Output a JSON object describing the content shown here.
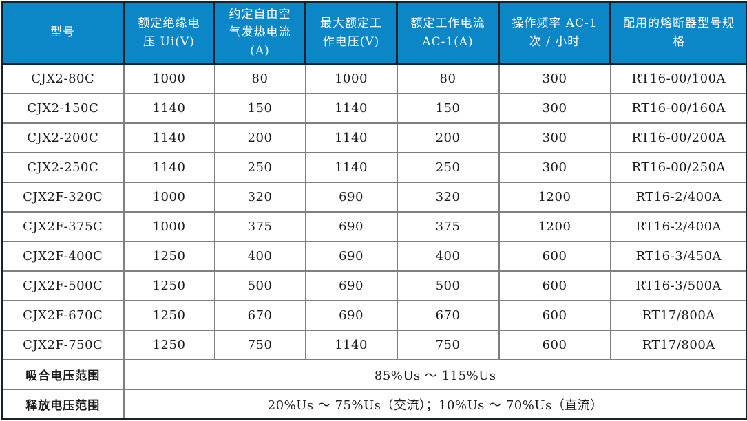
{
  "table": {
    "columns": [
      {
        "label": "型号"
      },
      {
        "label": "额定绝缘电压 Ui(V)"
      },
      {
        "label": "约定自由空气发热电流(A)"
      },
      {
        "label": "最大额定工作电压(V)"
      },
      {
        "label": "额定工作电流 AC-1(A)"
      },
      {
        "label": "操作频率 AC-1 次 / 小时"
      },
      {
        "label": "配用的熔断器型号规格"
      }
    ],
    "rows": [
      [
        "CJX2-80C",
        "1000",
        "80",
        "1000",
        "80",
        "300",
        "RT16-00/100A"
      ],
      [
        "CJX2-150C",
        "1140",
        "150",
        "1140",
        "150",
        "300",
        "RT16-00/160A"
      ],
      [
        "CJX2-200C",
        "1140",
        "200",
        "1140",
        "200",
        "300",
        "RT16-00/200A"
      ],
      [
        "CJX2-250C",
        "1140",
        "250",
        "1140",
        "250",
        "300",
        "RT16-00/250A"
      ],
      [
        "CJX2F-320C",
        "1000",
        "320",
        "690",
        "320",
        "1200",
        "RT16-2/400A"
      ],
      [
        "CJX2F-375C",
        "1000",
        "375",
        "690",
        "375",
        "1200",
        "RT16-2/400A"
      ],
      [
        "CJX2F-400C",
        "1250",
        "400",
        "690",
        "400",
        "600",
        "RT16-3/450A"
      ],
      [
        "CJX2F-500C",
        "1250",
        "500",
        "690",
        "500",
        "600",
        "RT16-3/500A"
      ],
      [
        "CJX2F-670C",
        "1250",
        "670",
        "690",
        "670",
        "600",
        "RT17/800A"
      ],
      [
        "CJX2F-750C",
        "1250",
        "750",
        "1140",
        "750",
        "600",
        "RT17/800A"
      ]
    ],
    "footer_rows": [
      {
        "label": "吸合电压范围",
        "value": "85%Us ～ 115%Us"
      },
      {
        "label": "释放电压范围",
        "value": "20%Us ～ 75%Us（交流）；10%Us ～ 70%Us（直流）"
      }
    ],
    "colors": {
      "header_bg": "#0b86c6",
      "header_text": "#ffffff",
      "header_divider": "#15222e",
      "grid_line": "#7f7f7f",
      "outer_border": "#1a2128",
      "body_text": "#1a1a1a",
      "row_bg": "#ffffff"
    }
  }
}
